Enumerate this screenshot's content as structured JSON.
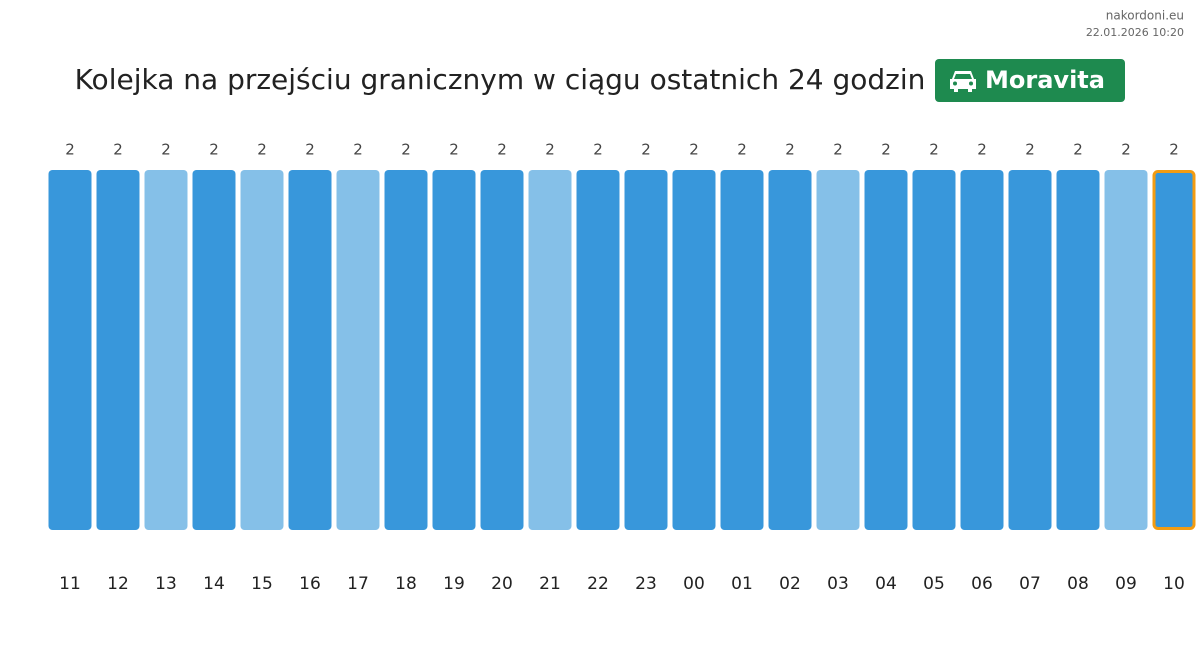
{
  "site": "nakordoni.eu",
  "timestamp": "22.01.2026 10:20",
  "chart_data": {
    "type": "bar",
    "title": "Kolejka na przejściu granicznym w ciągu ostatnich 24 godzin",
    "badge": "Moravita",
    "categories": [
      "11",
      "12",
      "13",
      "14",
      "15",
      "16",
      "17",
      "18",
      "19",
      "20",
      "21",
      "22",
      "23",
      "00",
      "01",
      "02",
      "03",
      "04",
      "05",
      "06",
      "07",
      "08",
      "09",
      "10"
    ],
    "values": [
      2,
      2,
      2,
      2,
      2,
      2,
      2,
      2,
      2,
      2,
      2,
      2,
      2,
      2,
      2,
      2,
      2,
      2,
      2,
      2,
      2,
      2,
      2,
      2
    ],
    "colors": [
      "#3897db",
      "#3897db",
      "#85c0e8",
      "#3897db",
      "#85c0e8",
      "#3897db",
      "#85c0e8",
      "#3897db",
      "#3897db",
      "#3897db",
      "#85c0e8",
      "#3897db",
      "#3897db",
      "#3897db",
      "#3897db",
      "#3897db",
      "#85c0e8",
      "#3897db",
      "#3897db",
      "#3897db",
      "#3897db",
      "#3897db",
      "#85c0e8",
      "#3897db"
    ],
    "highlight_color": "#f39c12",
    "ylim": [
      0,
      2
    ]
  }
}
